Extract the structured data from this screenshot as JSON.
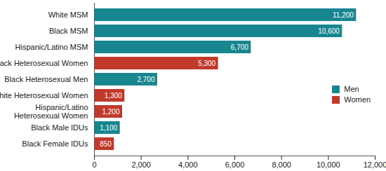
{
  "chart_data": {
    "type": "bar",
    "orientation": "horizontal",
    "categories": [
      "White MSM",
      "Black MSM",
      "Hispanic/Latino MSM",
      "Black Heterosexual Women",
      "Black Heterosexual Men",
      "White Heterosexual Women",
      "Hispanic/Latino Heterosexual Women",
      "Black Male IDUs",
      "Black Female IDUs"
    ],
    "series": [
      {
        "name": "Men",
        "color": "#17868f",
        "values": [
          11200,
          10600,
          6700,
          null,
          2700,
          null,
          null,
          1100,
          null
        ],
        "value_labels": [
          "11,200",
          "10,600",
          "6,700",
          null,
          "2,700",
          null,
          null,
          "1,100",
          null
        ]
      },
      {
        "name": "Women",
        "color": "#c0392b",
        "values": [
          null,
          null,
          null,
          5300,
          null,
          1300,
          1200,
          null,
          850
        ],
        "value_labels": [
          null,
          null,
          null,
          "5,300",
          null,
          "1,300",
          "1,200",
          null,
          "850"
        ]
      }
    ],
    "xlim": [
      0,
      12000
    ],
    "xticks": [
      0,
      {
        "value": 2000,
        "label": "2,000"
      },
      {
        "value": 4000,
        "label": "4,000"
      },
      {
        "value": 6000,
        "label": "6,000"
      },
      {
        "value": 8000,
        "label": "8,000"
      },
      {
        "value": 10000,
        "label": "10,000"
      },
      {
        "value": 12000,
        "label": "12,000"
      }
    ],
    "data_labels": true,
    "grid": false,
    "legend": "bottom-right"
  }
}
